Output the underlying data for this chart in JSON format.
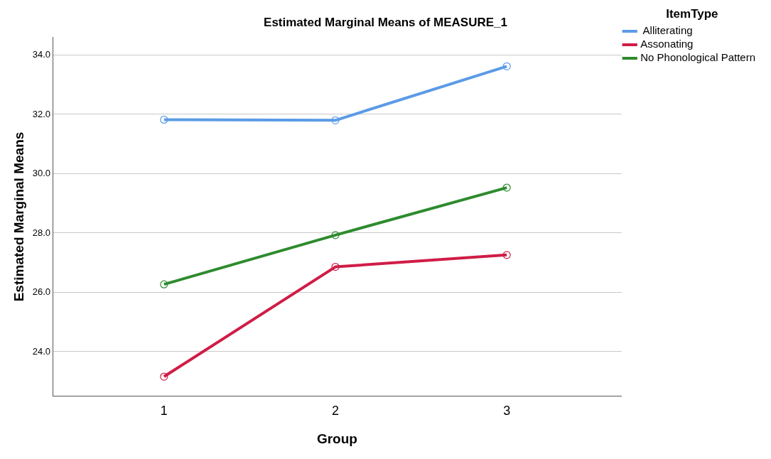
{
  "chart_data": {
    "type": "line",
    "title": "Estimated Marginal Means of MEASURE_1",
    "xlabel": "Group",
    "ylabel": "Estimated Marginal Means",
    "legend_title": "ItemType",
    "x": [
      1,
      2,
      3
    ],
    "xlim": [
      0.35,
      3.67
    ],
    "xticks": [
      1,
      2,
      3
    ],
    "ylim": [
      22.5,
      34.6
    ],
    "yticks": [
      {
        "value": 24,
        "label": "24.0"
      },
      {
        "value": 26,
        "label": "26.0"
      },
      {
        "value": 28,
        "label": "28.0"
      },
      {
        "value": 30,
        "label": "30.0"
      },
      {
        "value": 32,
        "label": "32.0"
      },
      {
        "value": 34,
        "label": "34.0"
      }
    ],
    "grid": "y",
    "legend": "top right",
    "marker": "circle",
    "line_style": "solid",
    "series": [
      {
        "name": " Alliterating",
        "color": "#5b9be6",
        "values": [
          31.82,
          31.8,
          33.62
        ]
      },
      {
        "name": "Assonating",
        "color": "#d01c46",
        "values": [
          23.16,
          26.86,
          27.26
        ]
      },
      {
        "name": "No Phonological Pattern",
        "color": "#2e8b2e",
        "values": [
          26.27,
          27.93,
          29.53
        ]
      }
    ]
  }
}
